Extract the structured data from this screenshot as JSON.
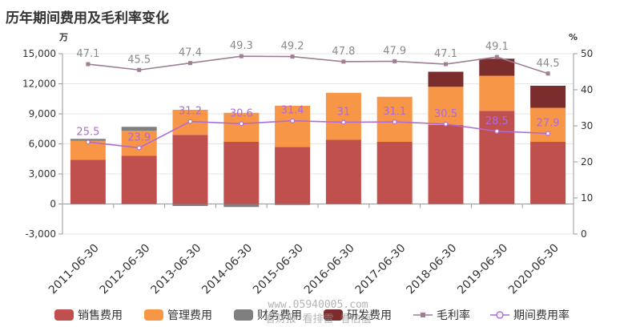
{
  "chart_data": {
    "type": "bar",
    "title": "历年期间费用及毛利率变化",
    "y_left_unit": "万",
    "y_right_unit": "%",
    "categories": [
      "2011-06-30",
      "2012-06-30",
      "2013-06-30",
      "2014-06-30",
      "2015-06-30",
      "2016-06-30",
      "2017-06-30",
      "2018-06-30",
      "2019-06-30",
      "2020-06-30"
    ],
    "y_left_ticks": [
      -3000,
      0,
      3000,
      6000,
      9000,
      12000,
      15000
    ],
    "y_left_tick_labels": [
      "-3,000",
      "0",
      "3,000",
      "6,000",
      "9,000",
      "12,000",
      "15,000"
    ],
    "y_right_ticks": [
      0,
      10,
      20,
      30,
      40,
      50
    ],
    "y_right_tick_labels": [
      "0",
      "10",
      "20",
      "30",
      "40",
      "50"
    ],
    "ylim_left": [
      -3000,
      15000
    ],
    "ylim_right": [
      0,
      50
    ],
    "stacked": true,
    "series": [
      {
        "name": "销售费用",
        "kind": "bar",
        "axis": "left",
        "color": "#c0504d",
        "values": [
          4400,
          4800,
          6900,
          6200,
          5700,
          6400,
          6200,
          7900,
          9300,
          6200
        ]
      },
      {
        "name": "管理费用",
        "kind": "bar",
        "axis": "left",
        "color": "#f79646",
        "values": [
          1900,
          2500,
          2500,
          2900,
          4100,
          4700,
          4500,
          3800,
          3500,
          3400
        ]
      },
      {
        "name": "财务费用",
        "kind": "bar",
        "axis": "left",
        "color": "#7f7f7f",
        "values": [
          200,
          400,
          -200,
          -300,
          -100,
          0,
          0,
          0,
          0,
          0
        ]
      },
      {
        "name": "研发费用",
        "kind": "bar",
        "axis": "left",
        "color": "#7b2c2c",
        "values": [
          0,
          0,
          0,
          0,
          0,
          0,
          0,
          1500,
          1700,
          2200
        ]
      },
      {
        "name": "毛利率",
        "kind": "line",
        "axis": "right",
        "color": "#9e7f93",
        "marker": "dash",
        "values": [
          47.1,
          45.5,
          47.4,
          49.3,
          49.2,
          47.8,
          47.9,
          47.1,
          49.1,
          44.5
        ]
      },
      {
        "name": "期间费用率",
        "kind": "line",
        "axis": "right",
        "color": "#b06ad6",
        "marker": "circle",
        "values": [
          25.5,
          23.9,
          31.2,
          30.6,
          31.4,
          31,
          31.1,
          30.5,
          28.5,
          27.9
        ]
      }
    ],
    "gross_labels": [
      "47.1",
      "45.5",
      "47.4",
      "49.3",
      "49.2",
      "47.8",
      "47.9",
      "47.1",
      "49.1",
      "44.5"
    ],
    "period_labels": [
      "25.5",
      "23.9",
      "31.2",
      "30.6",
      "31.4",
      "31",
      "31.1",
      "30.5",
      "28.5",
      "27.9"
    ],
    "legend_position": "bottom",
    "grid": "horizontal"
  },
  "watermark": {
    "line1": "www.05940005.com",
    "line2": "看财报 看排雷 看估值"
  }
}
